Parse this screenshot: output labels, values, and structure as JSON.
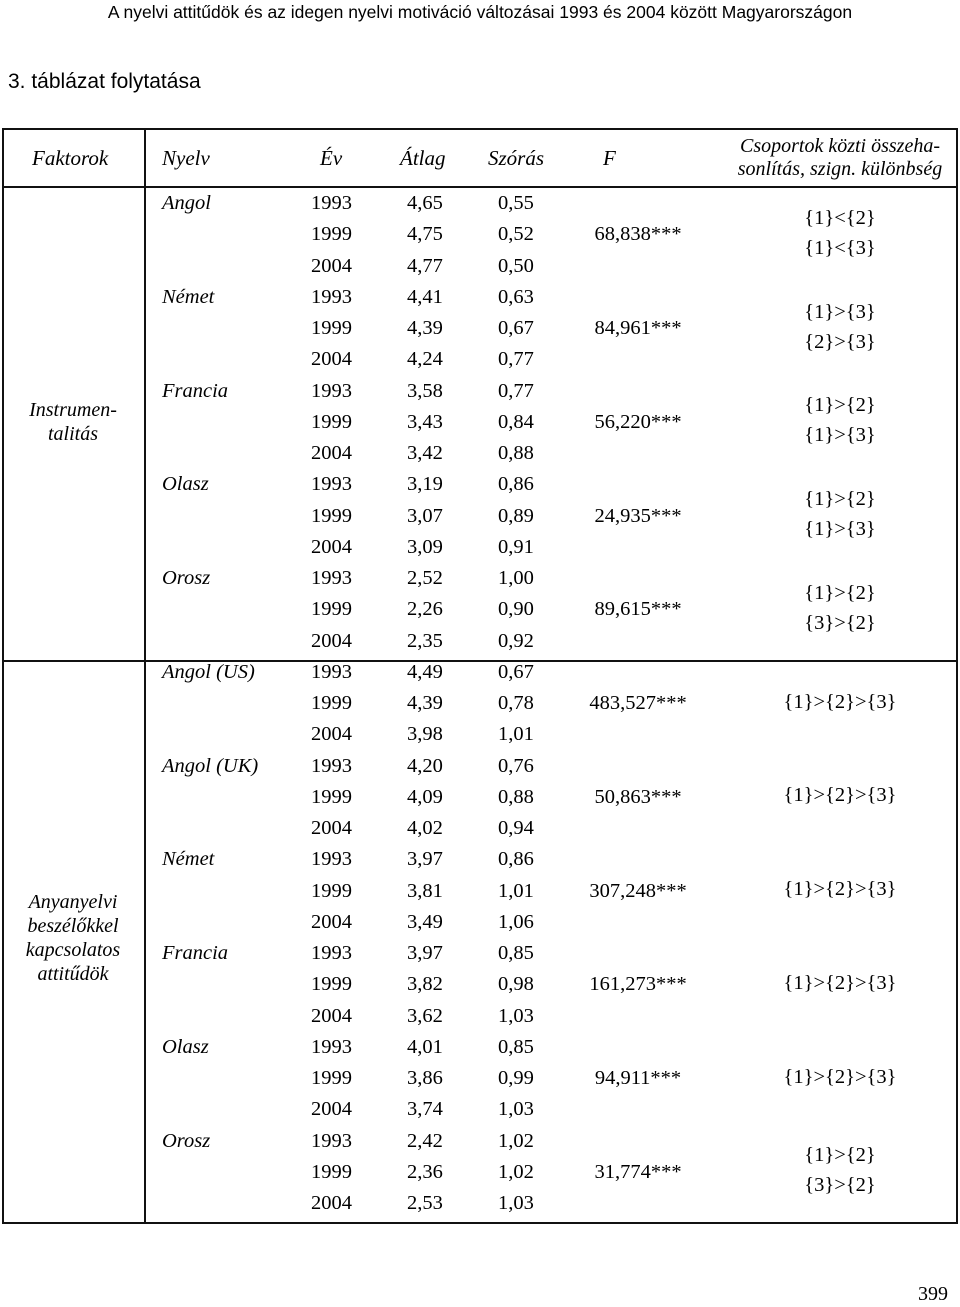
{
  "running_header": "A nyelvi attitűdök és az idegen nyelvi motiváció változásai 1993 és 2004 között Magyarországon",
  "caption": "3. táblázat folytatása",
  "page_number": "399",
  "columns": {
    "faktorok": "Faktorok",
    "nyelv": "Nyelv",
    "ev": "Év",
    "atlag": "Átlag",
    "szoras": "Szórás",
    "f": "F",
    "csoport_line1": "Csoportok közti összeha-",
    "csoport_line2": "sonlítás, szign. különbség"
  },
  "factors": [
    {
      "label_lines": [
        "Instrumen-",
        "talitás"
      ],
      "languages": [
        {
          "name": "Angol",
          "f": "68,838***",
          "comparison": [
            "{1}<{2}",
            "{1}<{3}"
          ],
          "rows": [
            {
              "year": "1993",
              "mean": "4,65",
              "sd": "0,55"
            },
            {
              "year": "1999",
              "mean": "4,75",
              "sd": "0,52"
            },
            {
              "year": "2004",
              "mean": "4,77",
              "sd": "0,50"
            }
          ]
        },
        {
          "name": "Német",
          "f": "84,961***",
          "comparison": [
            "{1}>{3}",
            "{2}>{3}"
          ],
          "rows": [
            {
              "year": "1993",
              "mean": "4,41",
              "sd": "0,63"
            },
            {
              "year": "1999",
              "mean": "4,39",
              "sd": "0,67"
            },
            {
              "year": "2004",
              "mean": "4,24",
              "sd": "0,77"
            }
          ]
        },
        {
          "name": "Francia",
          "f": "56,220***",
          "comparison": [
            "{1}>{2}",
            "{1}>{3}"
          ],
          "rows": [
            {
              "year": "1993",
              "mean": "3,58",
              "sd": "0,77"
            },
            {
              "year": "1999",
              "mean": "3,43",
              "sd": "0,84"
            },
            {
              "year": "2004",
              "mean": "3,42",
              "sd": "0,88"
            }
          ]
        },
        {
          "name": "Olasz",
          "f": "24,935***",
          "comparison": [
            "{1}>{2}",
            "{1}>{3}"
          ],
          "rows": [
            {
              "year": "1993",
              "mean": "3,19",
              "sd": "0,86"
            },
            {
              "year": "1999",
              "mean": "3,07",
              "sd": "0,89"
            },
            {
              "year": "2004",
              "mean": "3,09",
              "sd": "0,91"
            }
          ]
        },
        {
          "name": "Orosz",
          "f": "89,615***",
          "comparison": [
            "{1}>{2}",
            "{3}>{2}"
          ],
          "rows": [
            {
              "year": "1993",
              "mean": "2,52",
              "sd": "1,00"
            },
            {
              "year": "1999",
              "mean": "2,26",
              "sd": "0,90"
            },
            {
              "year": "2004",
              "mean": "2,35",
              "sd": "0,92"
            }
          ]
        }
      ]
    },
    {
      "label_lines": [
        "Anyanyelvi",
        "beszélőkkel",
        "kapcsolatos",
        "attitűdök"
      ],
      "languages": [
        {
          "name": "Angol (US)",
          "f": "483,527***",
          "comparison": [
            "{1}>{2}>{3}"
          ],
          "rows": [
            {
              "year": "1993",
              "mean": "4,49",
              "sd": "0,67"
            },
            {
              "year": "1999",
              "mean": "4,39",
              "sd": "0,78"
            },
            {
              "year": "2004",
              "mean": "3,98",
              "sd": "1,01"
            }
          ]
        },
        {
          "name": "Angol (UK)",
          "f": "50,863***",
          "comparison": [
            "{1}>{2}>{3}"
          ],
          "rows": [
            {
              "year": "1993",
              "mean": "4,20",
              "sd": "0,76"
            },
            {
              "year": "1999",
              "mean": "4,09",
              "sd": "0,88"
            },
            {
              "year": "2004",
              "mean": "4,02",
              "sd": "0,94"
            }
          ]
        },
        {
          "name": "Német",
          "f": "307,248***",
          "comparison": [
            "{1}>{2}>{3}"
          ],
          "rows": [
            {
              "year": "1993",
              "mean": "3,97",
              "sd": "0,86"
            },
            {
              "year": "1999",
              "mean": "3,81",
              "sd": "1,01"
            },
            {
              "year": "2004",
              "mean": "3,49",
              "sd": "1,06"
            }
          ]
        },
        {
          "name": "Francia",
          "f": "161,273***",
          "comparison": [
            "{1}>{2}>{3}"
          ],
          "rows": [
            {
              "year": "1993",
              "mean": "3,97",
              "sd": "0,85"
            },
            {
              "year": "1999",
              "mean": "3,82",
              "sd": "0,98"
            },
            {
              "year": "2004",
              "mean": "3,62",
              "sd": "1,03"
            }
          ]
        },
        {
          "name": "Olasz",
          "f": "94,911***",
          "comparison": [
            "{1}>{2}>{3}"
          ],
          "rows": [
            {
              "year": "1993",
              "mean": "4,01",
              "sd": "0,85"
            },
            {
              "year": "1999",
              "mean": "3,86",
              "sd": "0,99"
            },
            {
              "year": "2004",
              "mean": "3,74",
              "sd": "1,03"
            }
          ]
        },
        {
          "name": "Orosz",
          "f": "31,774***",
          "comparison": [
            "{1}>{2}",
            "{3}>{2}"
          ],
          "rows": [
            {
              "year": "1993",
              "mean": "2,42",
              "sd": "1,02"
            },
            {
              "year": "1999",
              "mean": "2,36",
              "sd": "1,02"
            },
            {
              "year": "2004",
              "mean": "2,53",
              "sd": "1,03"
            }
          ]
        }
      ]
    }
  ]
}
